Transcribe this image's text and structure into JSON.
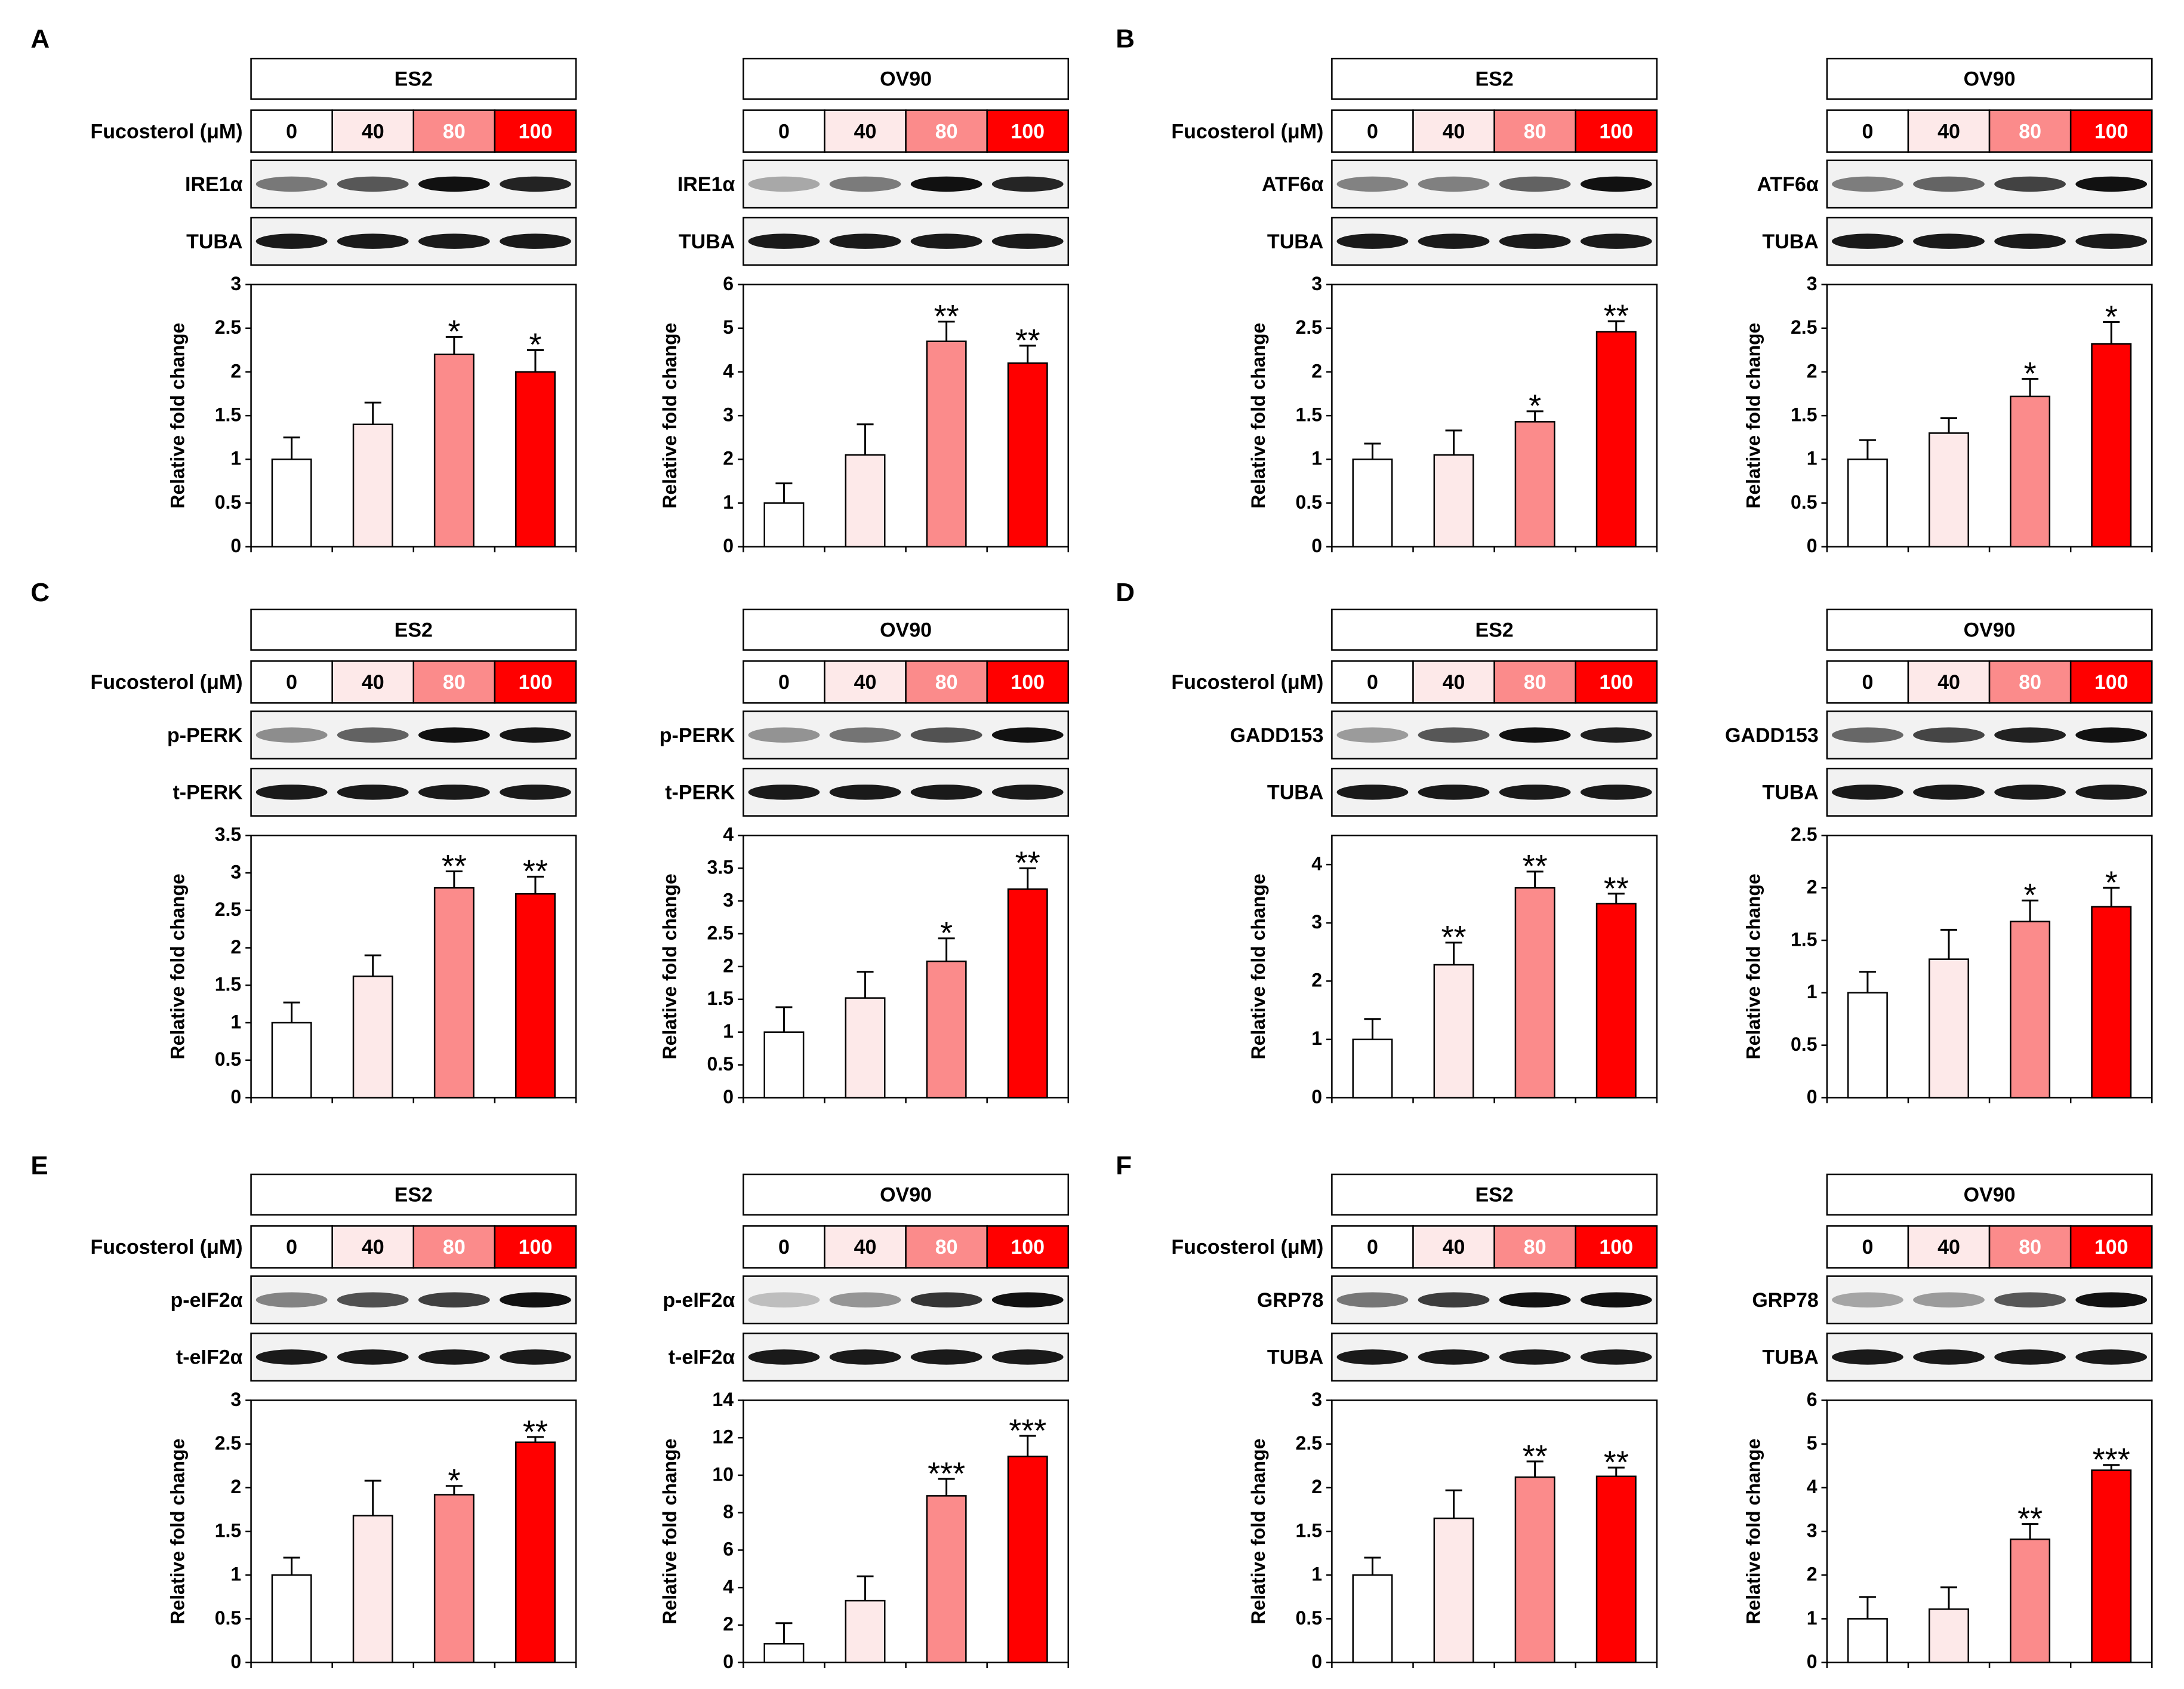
{
  "figure": {
    "treatment_label": "Fucosterol (μM)",
    "doses": [
      "0",
      "40",
      "80",
      "100"
    ],
    "ylabel": "Relative fold change",
    "dose_colors": [
      "#ffffff",
      "#fde9e9",
      "#fb8b8b",
      "#ff0000"
    ]
  },
  "chart_data": [
    {
      "type": "bar",
      "panel": "A",
      "cell_line": "ES2",
      "proteins": [
        "IRE1α",
        "TUBA"
      ],
      "categories": [
        "0",
        "40",
        "80",
        "100"
      ],
      "values": [
        1.0,
        1.4,
        2.2,
        2.0
      ],
      "errors": [
        0.25,
        0.25,
        0.2,
        0.25
      ],
      "stars": [
        "",
        "",
        "*",
        "*"
      ],
      "ylim": [
        0,
        3
      ],
      "yticks": [
        "0",
        "0.5",
        "1",
        "1.5",
        "2",
        "2.5",
        "3"
      ],
      "ylabel": "Relative fold change"
    },
    {
      "type": "bar",
      "panel": "A",
      "cell_line": "OV90",
      "proteins": [
        "IRE1α",
        "TUBA"
      ],
      "categories": [
        "0",
        "40",
        "80",
        "100"
      ],
      "values": [
        1.0,
        2.1,
        4.7,
        4.2
      ],
      "errors": [
        0.45,
        0.7,
        0.45,
        0.4
      ],
      "stars": [
        "",
        "",
        "**",
        "**"
      ],
      "ylim": [
        0,
        6
      ],
      "yticks": [
        "0",
        "1",
        "2",
        "3",
        "4",
        "5",
        "6"
      ],
      "ylabel": "Relative fold change"
    },
    {
      "type": "bar",
      "panel": "B",
      "cell_line": "ES2",
      "proteins": [
        "ATF6α",
        "TUBA"
      ],
      "categories": [
        "0",
        "40",
        "80",
        "100"
      ],
      "values": [
        1.0,
        1.05,
        1.43,
        2.46
      ],
      "errors": [
        0.18,
        0.28,
        0.12,
        0.12
      ],
      "stars": [
        "",
        "",
        "*",
        "**"
      ],
      "ylim": [
        0,
        3
      ],
      "yticks": [
        "0",
        "0.5",
        "1",
        "1.5",
        "2",
        "2.5",
        "3"
      ],
      "ylabel": "Relative fold change"
    },
    {
      "type": "bar",
      "panel": "B",
      "cell_line": "OV90",
      "proteins": [
        "ATF6α",
        "TUBA"
      ],
      "categories": [
        "0",
        "40",
        "80",
        "100"
      ],
      "values": [
        1.0,
        1.3,
        1.72,
        2.32
      ],
      "errors": [
        0.22,
        0.17,
        0.2,
        0.25
      ],
      "stars": [
        "",
        "",
        "*",
        "*"
      ],
      "ylim": [
        0,
        3
      ],
      "yticks": [
        "0",
        "0.5",
        "1",
        "1.5",
        "2",
        "2.5",
        "3"
      ],
      "ylabel": "Relative fold change"
    },
    {
      "type": "bar",
      "panel": "C",
      "cell_line": "ES2",
      "proteins": [
        "p-PERK",
        "t-PERK"
      ],
      "categories": [
        "0",
        "40",
        "80",
        "100"
      ],
      "values": [
        1.0,
        1.62,
        2.8,
        2.72
      ],
      "errors": [
        0.27,
        0.28,
        0.22,
        0.23
      ],
      "stars": [
        "",
        "",
        "**",
        "**"
      ],
      "ylim": [
        0,
        3.5
      ],
      "yticks": [
        "0",
        "0.5",
        "1",
        "1.5",
        "2",
        "2.5",
        "3",
        "3.5"
      ],
      "ylabel": "Relative fold change"
    },
    {
      "type": "bar",
      "panel": "C",
      "cell_line": "OV90",
      "proteins": [
        "p-PERK",
        "t-PERK"
      ],
      "categories": [
        "0",
        "40",
        "80",
        "100"
      ],
      "values": [
        1.0,
        1.52,
        2.08,
        3.18
      ],
      "errors": [
        0.38,
        0.4,
        0.35,
        0.32
      ],
      "stars": [
        "",
        "",
        "*",
        "**"
      ],
      "ylim": [
        0,
        4
      ],
      "yticks": [
        "0",
        "0.5",
        "1",
        "1.5",
        "2",
        "2.5",
        "3",
        "3.5",
        "4"
      ],
      "ylabel": "Relative fold change"
    },
    {
      "type": "bar",
      "panel": "D",
      "cell_line": "ES2",
      "proteins": [
        "GADD153",
        "TUBA"
      ],
      "categories": [
        "0",
        "40",
        "80",
        "100"
      ],
      "values": [
        1.0,
        2.28,
        3.6,
        3.33
      ],
      "errors": [
        0.35,
        0.38,
        0.28,
        0.17
      ],
      "stars": [
        "",
        "**",
        "**",
        "**"
      ],
      "ylim": [
        0,
        4.5
      ],
      "yticks": [
        "0",
        "1",
        "2",
        "3",
        "4"
      ],
      "ylabel": "Relative fold change"
    },
    {
      "type": "bar",
      "panel": "D",
      "cell_line": "OV90",
      "proteins": [
        "GADD153",
        "TUBA"
      ],
      "categories": [
        "0",
        "40",
        "80",
        "100"
      ],
      "values": [
        1.0,
        1.32,
        1.68,
        1.82
      ],
      "errors": [
        0.2,
        0.28,
        0.2,
        0.18
      ],
      "stars": [
        "",
        "",
        "*",
        "*"
      ],
      "ylim": [
        0,
        2.5
      ],
      "yticks": [
        "0",
        "0.5",
        "1",
        "1.5",
        "2",
        "2.5"
      ],
      "ylabel": "Relative fold change"
    },
    {
      "type": "bar",
      "panel": "E",
      "cell_line": "ES2",
      "proteins": [
        "p-eIF2α",
        "t-eIF2α"
      ],
      "categories": [
        "0",
        "40",
        "80",
        "100"
      ],
      "values": [
        1.0,
        1.68,
        1.92,
        2.52
      ],
      "errors": [
        0.2,
        0.4,
        0.1,
        0.06
      ],
      "stars": [
        "",
        "",
        "*",
        "**"
      ],
      "ylim": [
        0,
        3
      ],
      "yticks": [
        "0",
        "0.5",
        "1",
        "1.5",
        "2",
        "2.5",
        "3"
      ],
      "ylabel": "Relative fold change"
    },
    {
      "type": "bar",
      "panel": "E",
      "cell_line": "OV90",
      "proteins": [
        "p-eIF2α",
        "t-eIF2α"
      ],
      "categories": [
        "0",
        "40",
        "80",
        "100"
      ],
      "values": [
        1.0,
        3.3,
        8.9,
        11.0
      ],
      "errors": [
        1.1,
        1.3,
        0.9,
        1.1
      ],
      "stars": [
        "",
        "",
        "***",
        "***"
      ],
      "ylim": [
        0,
        14
      ],
      "yticks": [
        "0",
        "2",
        "4",
        "6",
        "8",
        "10",
        "12",
        "14"
      ],
      "ylabel": "Relative fold change"
    },
    {
      "type": "bar",
      "panel": "F",
      "cell_line": "ES2",
      "proteins": [
        "GRP78",
        "TUBA"
      ],
      "categories": [
        "0",
        "40",
        "80",
        "100"
      ],
      "values": [
        1.0,
        1.65,
        2.12,
        2.13
      ],
      "errors": [
        0.2,
        0.32,
        0.18,
        0.1
      ],
      "stars": [
        "",
        "",
        "**",
        "**"
      ],
      "ylim": [
        0,
        3
      ],
      "yticks": [
        "0",
        "0.5",
        "1",
        "1.5",
        "2",
        "2.5",
        "3"
      ],
      "ylabel": "Relative fold change"
    },
    {
      "type": "bar",
      "panel": "F",
      "cell_line": "OV90",
      "proteins": [
        "GRP78",
        "TUBA"
      ],
      "categories": [
        "0",
        "40",
        "80",
        "100"
      ],
      "values": [
        1.0,
        1.22,
        2.82,
        4.4
      ],
      "errors": [
        0.5,
        0.5,
        0.35,
        0.12
      ],
      "stars": [
        "",
        "",
        "**",
        "***"
      ],
      "ylim": [
        0,
        6
      ],
      "yticks": [
        "0",
        "1",
        "2",
        "3",
        "4",
        "5",
        "6"
      ],
      "ylabel": "Relative fold change"
    }
  ]
}
